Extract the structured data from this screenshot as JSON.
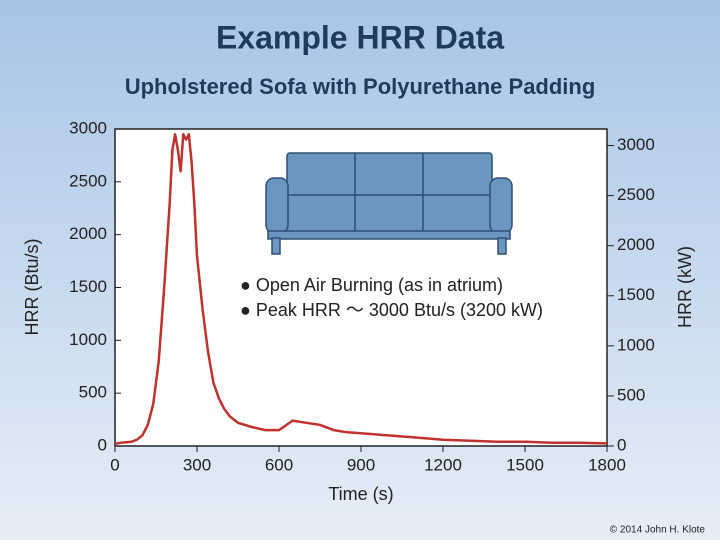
{
  "chart_data": {
    "type": "line",
    "title": "Example HRR Data",
    "subtitle": "Upholstered Sofa with Polyurethane Padding",
    "x_label": "Time (s)",
    "y_label": "HRR (Btu/s)",
    "y2_label": "HRR (kW)",
    "annotations": [
      "● Open Air Burning (as in atrium)",
      "● Peak HRR ～ 3000 Btu/s (3200 kW)"
    ],
    "credit": "© 2014 John H. Klote",
    "x": [
      0,
      20,
      40,
      60,
      80,
      100,
      120,
      140,
      160,
      180,
      200,
      210,
      220,
      230,
      240,
      250,
      260,
      270,
      280,
      290,
      300,
      320,
      340,
      360,
      380,
      400,
      420,
      450,
      500,
      550,
      600,
      650,
      700,
      750,
      800,
      850,
      900,
      1000,
      1100,
      1200,
      1300,
      1400,
      1500,
      1600,
      1700,
      1800
    ],
    "series": [
      {
        "name": "HRR",
        "color": "#c0322c",
        "values": [
          20,
          30,
          35,
          40,
          60,
          100,
          200,
          400,
          800,
          1500,
          2300,
          2800,
          2950,
          2800,
          2600,
          2950,
          2900,
          2950,
          2700,
          2300,
          1800,
          1300,
          900,
          600,
          450,
          350,
          280,
          220,
          180,
          150,
          150,
          240,
          220,
          200,
          150,
          130,
          120,
          100,
          80,
          60,
          50,
          40,
          40,
          30,
          30,
          25
        ]
      }
    ],
    "xlim": [
      0,
      1800
    ],
    "xticks": [
      0,
      300,
      600,
      900,
      1200,
      1500,
      1800
    ],
    "ylim": [
      0,
      3000
    ],
    "yticks": [
      0,
      500,
      1000,
      1500,
      2000,
      2500,
      3000
    ],
    "y2lim": [
      0,
      3165
    ],
    "y2ticks": [
      0,
      500,
      1000,
      1500,
      2000,
      2500,
      3000
    ]
  }
}
